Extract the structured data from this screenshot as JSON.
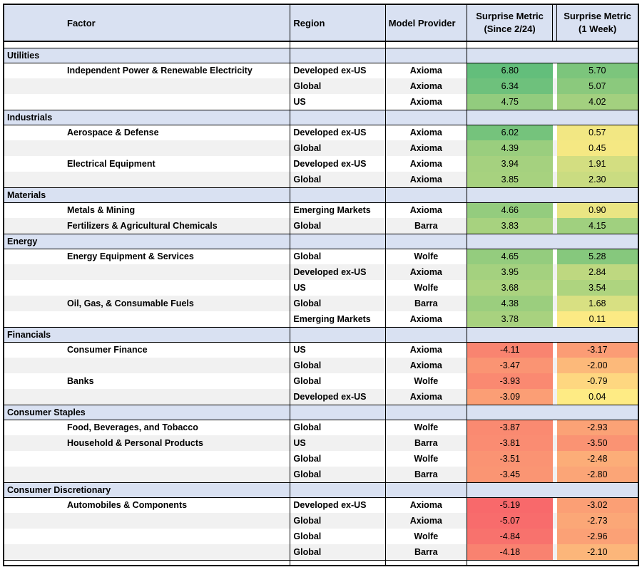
{
  "header": {
    "factor": "Factor",
    "region": "Region",
    "provider": "Model Provider",
    "metric_since": {
      "line1": "Surprise Metric",
      "line2": "(Since 2/24)"
    },
    "metric_week": {
      "line1": "Surprise Metric",
      "line2": "(1 Week)"
    }
  },
  "colors": {
    "header_bg": "#D9E1F2",
    "stripe_bg": "#F1F1F1",
    "scale_min": "#F8696B",
    "scale_mid": "#FFEB84",
    "scale_max": "#63BE7B",
    "border": "#000000"
  },
  "chart_data": {
    "type": "table",
    "columns": [
      "Factor",
      "Region",
      "Model Provider",
      "Surprise Metric (Since 2/24)",
      "Surprise Metric (1 Week)"
    ],
    "color_scale_note": "3-color scale: red (min) to yellow (0) to green (max) applied to both metric columns",
    "sections": [
      {
        "sector": "Utilities",
        "rows": [
          {
            "factor": "Independent Power & Renewable Electricity",
            "region": "Developed ex-US",
            "provider": "Axioma",
            "since": "6.80",
            "week": "5.70"
          },
          {
            "factor": "",
            "region": "Global",
            "provider": "Axioma",
            "since": "6.34",
            "week": "5.07"
          },
          {
            "factor": "",
            "region": "US",
            "provider": "Axioma",
            "since": "4.75",
            "week": "4.02"
          }
        ]
      },
      {
        "sector": "Industrials",
        "rows": [
          {
            "factor": "Aerospace & Defense",
            "region": "Developed ex-US",
            "provider": "Axioma",
            "since": "6.02",
            "week": "0.57"
          },
          {
            "factor": "",
            "region": "Global",
            "provider": "Axioma",
            "since": "4.39",
            "week": "0.45"
          },
          {
            "factor": "Electrical Equipment",
            "region": "Developed ex-US",
            "provider": "Axioma",
            "since": "3.94",
            "week": "1.91"
          },
          {
            "factor": "",
            "region": "Global",
            "provider": "Axioma",
            "since": "3.85",
            "week": "2.30"
          }
        ]
      },
      {
        "sector": "Materials",
        "rows": [
          {
            "factor": "Metals & Mining",
            "region": "Emerging Markets",
            "provider": "Axioma",
            "since": "4.66",
            "week": "0.90"
          },
          {
            "factor": "Fertilizers & Agricultural Chemicals",
            "region": "Global",
            "provider": "Barra",
            "since": "3.83",
            "week": "4.15"
          }
        ]
      },
      {
        "sector": "Energy",
        "rows": [
          {
            "factor": "Energy Equipment & Services",
            "region": "Global",
            "provider": "Wolfe",
            "since": "4.65",
            "week": "5.28"
          },
          {
            "factor": "",
            "region": "Developed ex-US",
            "provider": "Axioma",
            "since": "3.95",
            "week": "2.84"
          },
          {
            "factor": "",
            "region": "US",
            "provider": "Wolfe",
            "since": "3.68",
            "week": "3.54"
          },
          {
            "factor": "Oil, Gas, & Consumable Fuels",
            "region": "Global",
            "provider": "Barra",
            "since": "4.38",
            "week": "1.68"
          },
          {
            "factor": "",
            "region": "Emerging Markets",
            "provider": "Axioma",
            "since": "3.78",
            "week": "0.11"
          }
        ]
      },
      {
        "sector": "Financials",
        "rows": [
          {
            "factor": "Consumer Finance",
            "region": "US",
            "provider": "Axioma",
            "since": "-4.11",
            "week": "-3.17"
          },
          {
            "factor": "",
            "region": "Global",
            "provider": "Axioma",
            "since": "-3.47",
            "week": "-2.00"
          },
          {
            "factor": "Banks",
            "region": "Global",
            "provider": "Wolfe",
            "since": "-3.93",
            "week": "-0.79"
          },
          {
            "factor": "",
            "region": "Developed ex-US",
            "provider": "Axioma",
            "since": "-3.09",
            "week": "0.04"
          }
        ]
      },
      {
        "sector": "Consumer Staples",
        "rows": [
          {
            "factor": "Food, Beverages, and Tobacco",
            "region": "Global",
            "provider": "Wolfe",
            "since": "-3.87",
            "week": "-2.93"
          },
          {
            "factor": "Household & Personal Products",
            "region": "US",
            "provider": "Barra",
            "since": "-3.81",
            "week": "-3.50"
          },
          {
            "factor": "",
            "region": "Global",
            "provider": "Wolfe",
            "since": "-3.51",
            "week": "-2.48"
          },
          {
            "factor": "",
            "region": "Global",
            "provider": "Barra",
            "since": "-3.45",
            "week": "-2.80"
          }
        ]
      },
      {
        "sector": "Consumer Discretionary",
        "rows": [
          {
            "factor": "Automobiles & Components",
            "region": "Developed ex-US",
            "provider": "Axioma",
            "since": "-5.19",
            "week": "-3.02"
          },
          {
            "factor": "",
            "region": "Global",
            "provider": "Axioma",
            "since": "-5.07",
            "week": "-2.73"
          },
          {
            "factor": "",
            "region": "Global",
            "provider": "Wolfe",
            "since": "-4.84",
            "week": "-2.96"
          },
          {
            "factor": "",
            "region": "Global",
            "provider": "Barra",
            "since": "-4.18",
            "week": "-2.10"
          }
        ]
      }
    ]
  }
}
